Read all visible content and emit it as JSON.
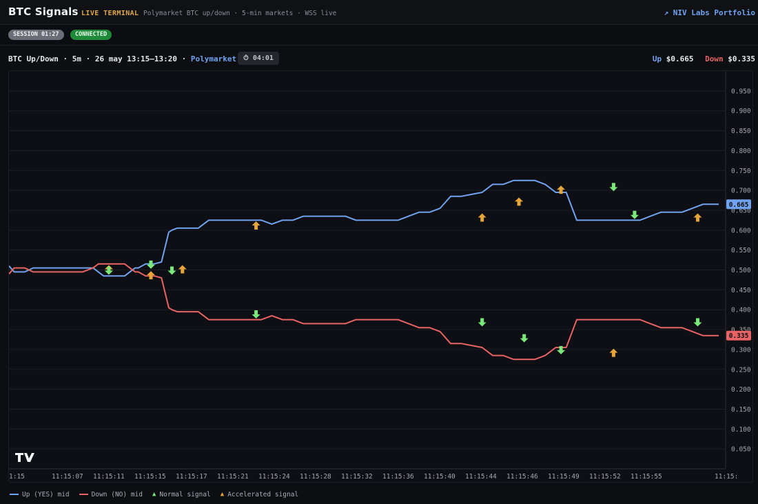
{
  "header": {
    "brand": "BTC Signals",
    "live_label": "LIVE TERMINAL",
    "subtitle": "Polymarket BTC up/down · 5-min markets · WSS live",
    "portfolio_link": "↗ NIV Labs Portfolio"
  },
  "status": {
    "session": "SESSION 01:27",
    "connection": "CONNECTED"
  },
  "market": {
    "title": "BTC Up/Down · 5m · 26 may 13:15–13:20 · ",
    "link": "Polymarket ↗",
    "timer": "⏱ 04:01",
    "up_label": "Up",
    "up_price": "$0.665",
    "down_label": "Down",
    "down_price": "$0.335"
  },
  "legend": {
    "up": "Up (YES) mid",
    "down": "Down (NO) mid",
    "normal": "Normal signal",
    "accel": "Accelerated signal"
  },
  "colors": {
    "up": "#6fa3f0",
    "down": "#e86464",
    "normal": "#7be87b",
    "accel": "#e5a53a"
  },
  "chart_data": {
    "type": "line",
    "x_ticks": [
      "1:15",
      "11:15:07",
      "11:15:11",
      "11:15:15",
      "11:15:17",
      "11:15:21",
      "11:15:24",
      "11:15:28",
      "11:15:32",
      "11:15:36",
      "11:15:40",
      "11:15:44",
      "11:15:46",
      "11:15:49",
      "11:15:52",
      "11:15:55",
      "11:15:"
    ],
    "y_ticks": [
      "0.950",
      "0.900",
      "0.850",
      "0.800",
      "0.750",
      "0.700",
      "0.650",
      "0.600",
      "0.550",
      "0.500",
      "0.450",
      "0.400",
      "0.350",
      "0.300",
      "0.250",
      "0.200",
      "0.150",
      "0.100",
      "0.050"
    ],
    "ylim": [
      0.0,
      1.0
    ],
    "x": [
      0,
      0.5,
      1.5,
      2.3,
      3,
      4,
      5,
      6,
      7,
      8,
      8.5,
      9,
      10,
      11,
      12,
      12.3,
      13,
      13.8,
      14.5,
      15.2,
      15.5,
      16,
      17,
      18,
      19,
      20,
      22,
      23,
      23.5,
      24,
      25,
      26,
      27,
      28,
      29,
      30,
      32,
      33,
      34,
      35,
      36,
      37,
      38,
      39,
      40,
      41,
      42,
      43,
      44,
      45,
      46,
      47,
      47.5,
      48,
      50,
      51,
      51.5,
      52,
      53,
      54,
      55,
      56,
      57,
      58,
      59,
      60,
      61,
      62,
      63,
      64,
      65,
      66,
      67,
      67.5
    ],
    "series": [
      {
        "name": "Up (YES) mid",
        "values": [
          0.51,
          0.495,
          0.495,
          0.505,
          0.505,
          0.505,
          0.505,
          0.505,
          0.505,
          0.505,
          0.495,
          0.485,
          0.485,
          0.485,
          0.505,
          0.505,
          0.515,
          0.515,
          0.52,
          0.595,
          0.6,
          0.605,
          0.605,
          0.605,
          0.625,
          0.625,
          0.625,
          0.625,
          0.625,
          0.625,
          0.615,
          0.625,
          0.625,
          0.635,
          0.635,
          0.635,
          0.635,
          0.625,
          0.625,
          0.625,
          0.625,
          0.625,
          0.635,
          0.645,
          0.645,
          0.655,
          0.685,
          0.685,
          0.69,
          0.695,
          0.715,
          0.715,
          0.72,
          0.725,
          0.725,
          0.715,
          0.705,
          0.695,
          0.695,
          0.625,
          0.625,
          0.625,
          0.625,
          0.625,
          0.625,
          0.625,
          0.635,
          0.645,
          0.645,
          0.645,
          0.655,
          0.665,
          0.665,
          0.665
        ]
      },
      {
        "name": "Down (NO) mid",
        "values": [
          0.49,
          0.505,
          0.505,
          0.495,
          0.495,
          0.495,
          0.495,
          0.495,
          0.495,
          0.505,
          0.515,
          0.515,
          0.515,
          0.515,
          0.495,
          0.495,
          0.485,
          0.485,
          0.48,
          0.405,
          0.4,
          0.395,
          0.395,
          0.395,
          0.375,
          0.375,
          0.375,
          0.375,
          0.375,
          0.375,
          0.385,
          0.375,
          0.375,
          0.365,
          0.365,
          0.365,
          0.365,
          0.375,
          0.375,
          0.375,
          0.375,
          0.375,
          0.365,
          0.355,
          0.355,
          0.345,
          0.315,
          0.315,
          0.31,
          0.305,
          0.285,
          0.285,
          0.28,
          0.275,
          0.275,
          0.285,
          0.295,
          0.305,
          0.305,
          0.375,
          0.375,
          0.375,
          0.375,
          0.375,
          0.375,
          0.375,
          0.365,
          0.355,
          0.355,
          0.355,
          0.345,
          0.335,
          0.335,
          0.335
        ]
      }
    ],
    "signals": [
      {
        "x": 9.5,
        "y": 0.5,
        "dir": "up",
        "kind": "accel"
      },
      {
        "x": 9.5,
        "y": 0.5,
        "dir": "down",
        "kind": "normal"
      },
      {
        "x": 13.5,
        "y": 0.515,
        "dir": "down",
        "kind": "normal"
      },
      {
        "x": 13.5,
        "y": 0.485,
        "dir": "up",
        "kind": "accel"
      },
      {
        "x": 15.5,
        "y": 0.5,
        "dir": "down",
        "kind": "normal"
      },
      {
        "x": 16.5,
        "y": 0.5,
        "dir": "up",
        "kind": "accel"
      },
      {
        "x": 23.5,
        "y": 0.61,
        "dir": "up",
        "kind": "accel"
      },
      {
        "x": 23.5,
        "y": 0.39,
        "dir": "down",
        "kind": "normal"
      },
      {
        "x": 45,
        "y": 0.63,
        "dir": "up",
        "kind": "accel"
      },
      {
        "x": 45,
        "y": 0.37,
        "dir": "down",
        "kind": "normal"
      },
      {
        "x": 48.5,
        "y": 0.67,
        "dir": "up",
        "kind": "accel"
      },
      {
        "x": 49,
        "y": 0.33,
        "dir": "down",
        "kind": "normal"
      },
      {
        "x": 52.5,
        "y": 0.7,
        "dir": "up",
        "kind": "accel"
      },
      {
        "x": 52.5,
        "y": 0.3,
        "dir": "down",
        "kind": "normal"
      },
      {
        "x": 57.5,
        "y": 0.71,
        "dir": "down",
        "kind": "normal"
      },
      {
        "x": 57.5,
        "y": 0.29,
        "dir": "up",
        "kind": "accel"
      },
      {
        "x": 59.5,
        "y": 0.64,
        "dir": "down",
        "kind": "normal"
      },
      {
        "x": 65.5,
        "y": 0.63,
        "dir": "up",
        "kind": "accel"
      },
      {
        "x": 65.5,
        "y": 0.37,
        "dir": "down",
        "kind": "normal"
      }
    ],
    "last_labels": {
      "up": "0.665",
      "down": "0.335"
    },
    "grid": true,
    "legend": "bottom-left"
  }
}
